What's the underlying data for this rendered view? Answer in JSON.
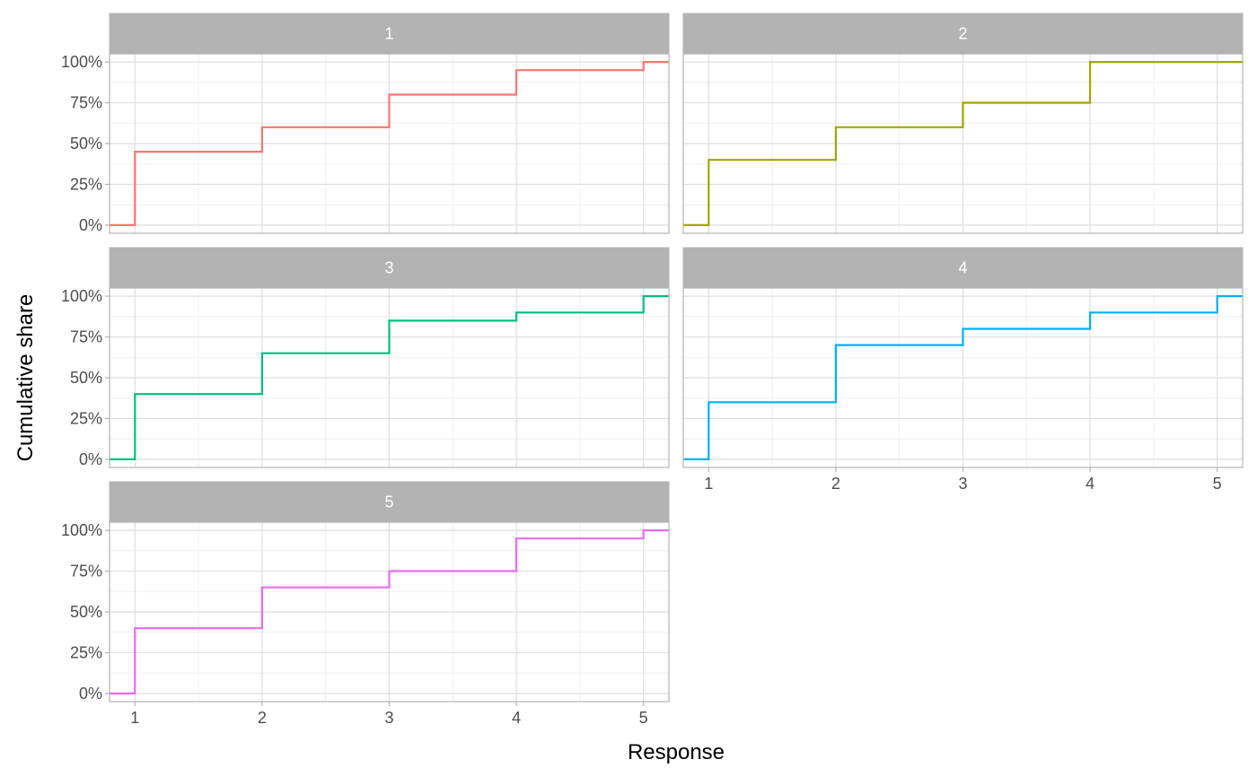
{
  "chart_data": {
    "type": "line",
    "subtype": "step",
    "facet_by": "group",
    "xlabel": "Response",
    "ylabel": "Cumulative share",
    "x_ticks": [
      1,
      2,
      3,
      4,
      5
    ],
    "x_tick_labels": [
      "1",
      "2",
      "3",
      "4",
      "5"
    ],
    "y_ticks": [
      0,
      0.25,
      0.5,
      0.75,
      1.0
    ],
    "y_tick_labels": [
      "0%",
      "25%",
      "50%",
      "75%",
      "100%"
    ],
    "xlim": [
      0.8,
      5.2
    ],
    "ylim": [
      -0.05,
      1.05
    ],
    "grid": true,
    "legend": "none",
    "facets": [
      {
        "label": "1",
        "color": "#F8766D",
        "x": [
          0.8,
          1,
          2,
          3,
          4,
          5,
          5.2
        ],
        "y": [
          0,
          0.45,
          0.6,
          0.8,
          0.95,
          1.0,
          1.0
        ]
      },
      {
        "label": "2",
        "color": "#A3A500",
        "x": [
          0.8,
          1,
          2,
          3,
          4,
          5,
          5.2
        ],
        "y": [
          0,
          0.4,
          0.6,
          0.75,
          1.0,
          1.0,
          1.0
        ]
      },
      {
        "label": "3",
        "color": "#00BF7D",
        "x": [
          0.8,
          1,
          2,
          3,
          4,
          5,
          5.2
        ],
        "y": [
          0,
          0.4,
          0.65,
          0.85,
          0.9,
          1.0,
          1.0
        ]
      },
      {
        "label": "4",
        "color": "#00B0F6",
        "x": [
          0.8,
          1,
          2,
          3,
          4,
          5,
          5.2
        ],
        "y": [
          0,
          0.35,
          0.7,
          0.8,
          0.9,
          1.0,
          1.0
        ]
      },
      {
        "label": "5",
        "color": "#E76BF3",
        "x": [
          0.8,
          1,
          2,
          3,
          4,
          5,
          5.2
        ],
        "y": [
          0,
          0.4,
          0.65,
          0.75,
          0.95,
          1.0,
          1.0
        ]
      }
    ]
  }
}
